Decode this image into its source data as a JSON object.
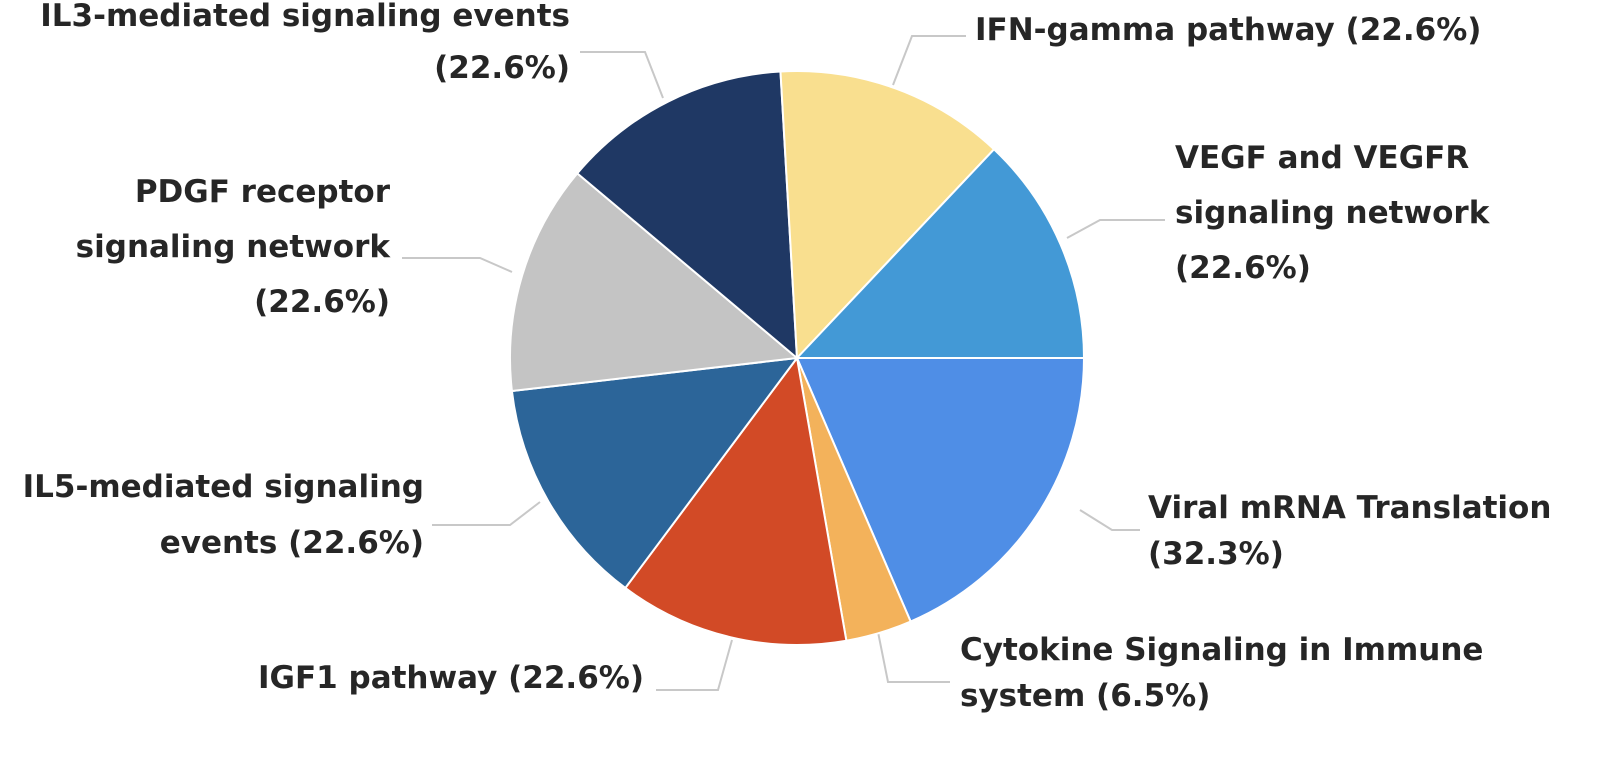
{
  "chart_data": {
    "type": "pie",
    "title": "",
    "slices": [
      {
        "name": "Viral mRNA Translation",
        "value": 32.3,
        "label_lines": [
          "Viral mRNA Translation",
          "(32.3%)"
        ],
        "color": "#4f8ee6"
      },
      {
        "name": "Cytokine Signaling in Immune system",
        "value": 6.5,
        "label_lines": [
          "Cytokine Signaling in Immune",
          "system (6.5%)"
        ],
        "color": "#f3b25b"
      },
      {
        "name": "IGF1 pathway",
        "value": 22.6,
        "label_lines": [
          "IGF1 pathway (22.6%)"
        ],
        "color": "#d24a26"
      },
      {
        "name": "IL5-mediated signaling events",
        "value": 22.6,
        "label_lines": [
          "IL5-mediated signaling",
          "events (22.6%)"
        ],
        "color": "#2c6599"
      },
      {
        "name": "PDGF receptor signaling network",
        "value": 22.6,
        "label_lines": [
          "PDGF receptor",
          "signaling network",
          "(22.6%)"
        ],
        "color": "#c4c4c4"
      },
      {
        "name": "IL3-mediated signaling events",
        "value": 22.6,
        "label_lines": [
          "IL3-mediated signaling events",
          "(22.6%)"
        ],
        "color": "#1f3864"
      },
      {
        "name": "IFN-gamma pathway",
        "value": 22.6,
        "label_lines": [
          "IFN-gamma pathway (22.6%)"
        ],
        "color": "#f9df8f"
      },
      {
        "name": "VEGF and VEGFR signaling network",
        "value": 22.6,
        "label_lines": [
          "VEGF and VEGFR",
          "signaling network",
          "(22.6%)"
        ],
        "color": "#4399d6"
      }
    ],
    "start_angle_deg": 0,
    "direction": "clockwise",
    "legend": "none",
    "data_labels": "outside"
  }
}
